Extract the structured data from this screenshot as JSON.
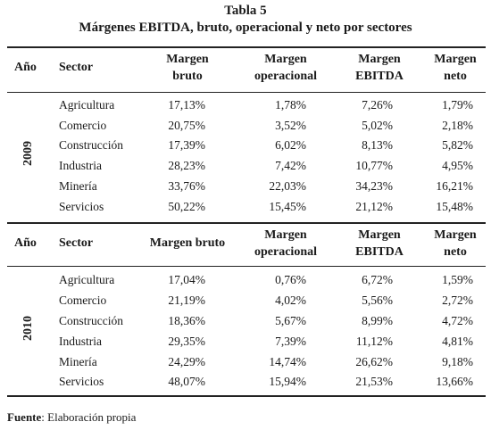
{
  "title": "Tabla 5",
  "subtitle": "Márgenes EBITDA, bruto, operacional y neto por sectores",
  "blocks": [
    {
      "headers": {
        "year": "Año",
        "sector": "Sector",
        "bruto_l1": "Margen",
        "bruto_l2": "bruto",
        "oper_l1": "Margen",
        "oper_l2": "operacional",
        "ebitda_l1": "Margen",
        "ebitda_l2": "EBITDA",
        "neto_l1": "Margen",
        "neto_l2": "neto"
      },
      "year": "2009",
      "rows": [
        {
          "sector": "Agricultura",
          "bruto": "17,13%",
          "oper": "1,78%",
          "ebitda": "7,26%",
          "neto": "1,79%"
        },
        {
          "sector": "Comercio",
          "bruto": "20,75%",
          "oper": "3,52%",
          "ebitda": "5,02%",
          "neto": "2,18%"
        },
        {
          "sector": "Construcción",
          "bruto": "17,39%",
          "oper": "6,02%",
          "ebitda": "8,13%",
          "neto": "5,82%"
        },
        {
          "sector": "Industria",
          "bruto": "28,23%",
          "oper": "7,42%",
          "ebitda": "10,77%",
          "neto": "4,95%"
        },
        {
          "sector": "Minería",
          "bruto": "33,76%",
          "oper": "22,03%",
          "ebitda": "34,23%",
          "neto": "16,21%"
        },
        {
          "sector": "Servicios",
          "bruto": "50,22%",
          "oper": "15,45%",
          "ebitda": "21,12%",
          "neto": "15,48%"
        }
      ]
    },
    {
      "headers": {
        "year": "Año",
        "sector": "Sector",
        "bruto_single": "Margen bruto",
        "oper_l1": "Margen",
        "oper_l2": "operacional",
        "ebitda_l1": "Margen",
        "ebitda_l2": "EBITDA",
        "neto_l1": "Margen",
        "neto_l2": "neto"
      },
      "year": "2010",
      "rows": [
        {
          "sector": "Agricultura",
          "bruto": "17,04%",
          "oper": "0,76%",
          "ebitda": "6,72%",
          "neto": "1,59%"
        },
        {
          "sector": "Comercio",
          "bruto": "21,19%",
          "oper": "4,02%",
          "ebitda": "5,56%",
          "neto": "2,72%"
        },
        {
          "sector": "Construcción",
          "bruto": "18,36%",
          "oper": "5,67%",
          "ebitda": "8,99%",
          "neto": "4,72%"
        },
        {
          "sector": "Industria",
          "bruto": "29,35%",
          "oper": "7,39%",
          "ebitda": "11,12%",
          "neto": "4,81%"
        },
        {
          "sector": "Minería",
          "bruto": "24,29%",
          "oper": "14,74%",
          "ebitda": "26,62%",
          "neto": "9,18%"
        },
        {
          "sector": "Servicios",
          "bruto": "48,07%",
          "oper": "15,94%",
          "ebitda": "21,53%",
          "neto": "13,66%"
        }
      ]
    }
  ],
  "footnote": {
    "label": "Fuente",
    "text": ": Elaboración propia"
  }
}
